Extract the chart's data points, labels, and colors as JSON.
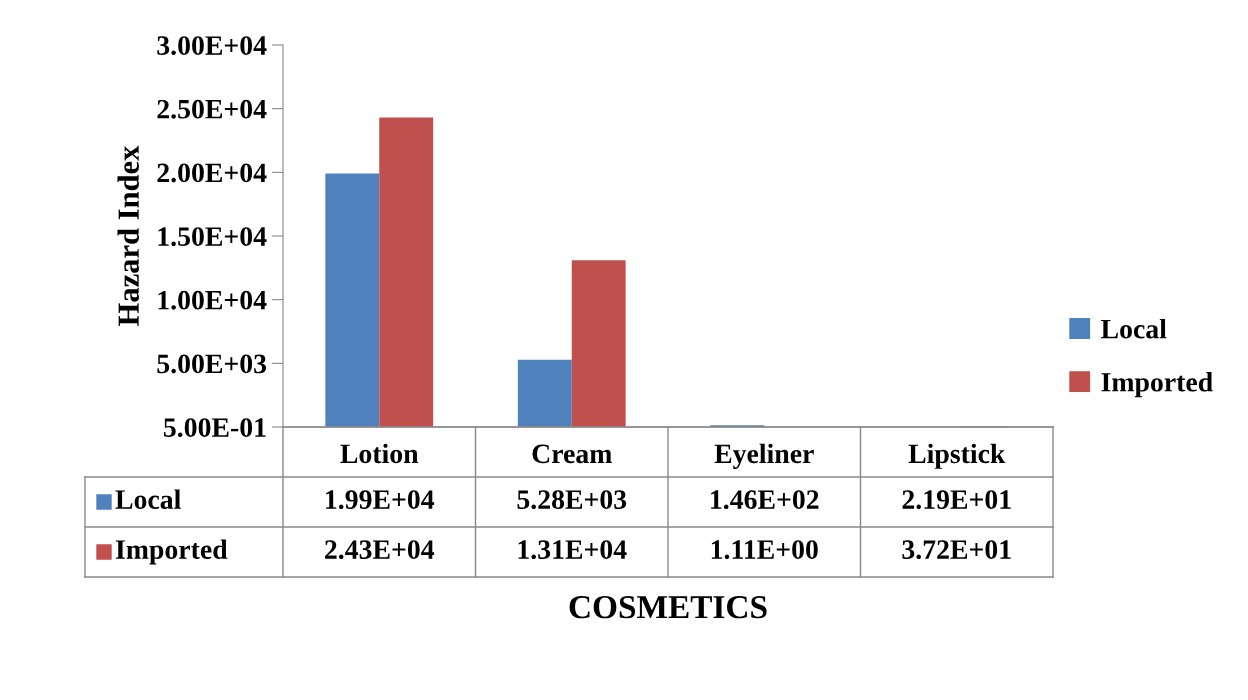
{
  "chart_data": {
    "type": "bar",
    "ylabel": "Hazard Index",
    "xlabel": "COSMETICS",
    "categories": [
      "Lotion",
      "Cream",
      "Eyeliner",
      "Lipstick"
    ],
    "series": [
      {
        "name": "Local",
        "color": "#4f81bd",
        "values": [
          19900,
          5280,
          146,
          21.9
        ],
        "value_labels": [
          "1.99E+04",
          "5.28E+03",
          "1.46E+02",
          "2.19E+01"
        ]
      },
      {
        "name": "Imported",
        "color": "#c0504d",
        "values": [
          24300,
          13100,
          1.11,
          37.2
        ],
        "value_labels": [
          "2.43E+04",
          "1.31E+04",
          "1.11E+00",
          "3.72E+01"
        ]
      }
    ],
    "ylim": [
      0.5,
      30000
    ],
    "yticks": [
      {
        "value": 0.5,
        "label": "5.00E-01"
      },
      {
        "value": 5000,
        "label": "5.00E+03"
      },
      {
        "value": 10000,
        "label": "1.00E+04"
      },
      {
        "value": 15000,
        "label": "1.50E+04"
      },
      {
        "value": 20000,
        "label": "2.00E+04"
      },
      {
        "value": 25000,
        "label": "2.50E+04"
      },
      {
        "value": 30000,
        "label": "3.00E+04"
      }
    ],
    "grid": false,
    "legend": "right"
  }
}
